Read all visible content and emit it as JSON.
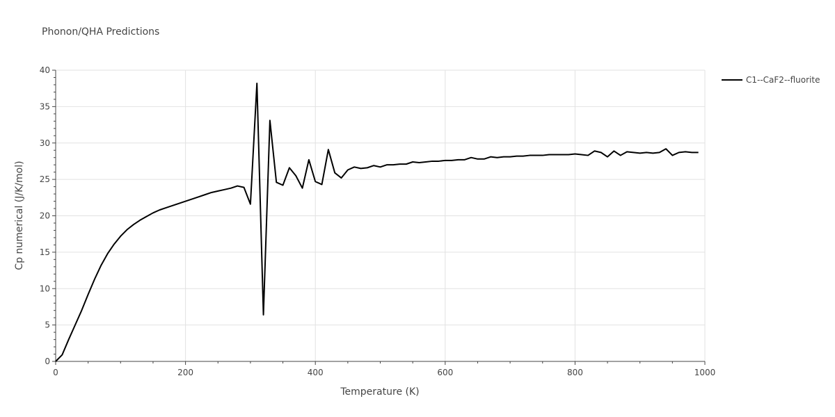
{
  "chart_data": {
    "type": "line",
    "title": "Phonon/QHA Predictions",
    "xlabel": "Temperature (K)",
    "ylabel": "Cp numerical (J/K/mol)",
    "xlim": [
      0,
      1000
    ],
    "ylim": [
      0,
      40
    ],
    "xticks": [
      0,
      200,
      400,
      600,
      800,
      1000
    ],
    "yticks": [
      0,
      5,
      10,
      15,
      20,
      25,
      30,
      35,
      40
    ],
    "grid": true,
    "legend_position": "top-right",
    "series": [
      {
        "name": "C1--CaF2--fluorite",
        "color": "#000000",
        "x": [
          0,
          10,
          20,
          30,
          40,
          50,
          60,
          70,
          80,
          90,
          100,
          110,
          120,
          130,
          140,
          150,
          160,
          170,
          180,
          190,
          200,
          210,
          220,
          230,
          240,
          250,
          260,
          270,
          280,
          290,
          300,
          310,
          320,
          330,
          340,
          350,
          360,
          370,
          380,
          390,
          400,
          410,
          420,
          430,
          440,
          450,
          460,
          470,
          480,
          490,
          500,
          510,
          520,
          530,
          540,
          550,
          560,
          570,
          580,
          590,
          600,
          610,
          620,
          630,
          640,
          650,
          660,
          670,
          680,
          690,
          700,
          710,
          720,
          730,
          740,
          750,
          760,
          770,
          780,
          790,
          800,
          810,
          820,
          830,
          840,
          850,
          860,
          870,
          880,
          890,
          900,
          910,
          920,
          930,
          940,
          950,
          960,
          970,
          980,
          990
        ],
        "y": [
          0,
          0.9,
          3.0,
          5.0,
          7.0,
          9.2,
          11.3,
          13.2,
          14.8,
          16.1,
          17.2,
          18.1,
          18.8,
          19.4,
          19.9,
          20.4,
          20.8,
          21.1,
          21.4,
          21.7,
          22.0,
          22.3,
          22.6,
          22.9,
          23.2,
          23.4,
          23.6,
          23.8,
          24.1,
          23.9,
          21.6,
          38.2,
          6.4,
          33.1,
          24.6,
          24.2,
          26.6,
          25.5,
          23.8,
          27.7,
          24.7,
          24.3,
          29.1,
          25.9,
          25.2,
          26.3,
          26.7,
          26.5,
          26.6,
          26.9,
          26.7,
          27.0,
          27.0,
          27.1,
          27.1,
          27.4,
          27.3,
          27.4,
          27.5,
          27.5,
          27.6,
          27.6,
          27.7,
          27.7,
          28.0,
          27.8,
          27.8,
          28.1,
          28.0,
          28.1,
          28.1,
          28.2,
          28.2,
          28.3,
          28.3,
          28.3,
          28.4,
          28.4,
          28.4,
          28.4,
          28.5,
          28.4,
          28.3,
          28.9,
          28.7,
          28.1,
          28.9,
          28.3,
          28.8,
          28.7,
          28.6,
          28.7,
          28.6,
          28.7,
          29.2,
          28.3,
          28.7,
          28.8,
          28.7,
          28.7
        ]
      }
    ]
  }
}
